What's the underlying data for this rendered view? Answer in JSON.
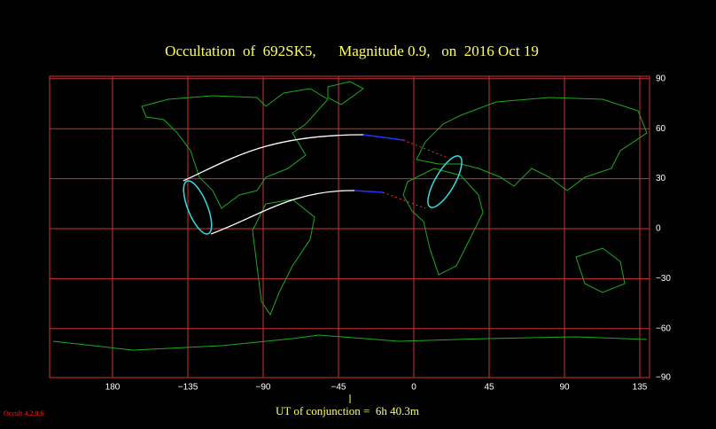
{
  "map": {
    "title": "Occultation  of  692SK5,      Magnitude 0.9,   on  2016 Oct 19",
    "xticks": [
      {
        "value": 180,
        "label": "180"
      },
      {
        "value": -135,
        "label": "−135"
      },
      {
        "value": -90,
        "label": "−90"
      },
      {
        "value": -45,
        "label": "−45"
      },
      0,
      45,
      90,
      135
    ],
    "yticks": [
      90,
      60,
      30,
      0,
      {
        "value": -30,
        "label": "−30"
      },
      {
        "value": -60,
        "label": "−60"
      },
      {
        "value": -90,
        "label": "−90"
      }
    ],
    "conjunction": "UT of conjunction =  6h 40.3m",
    "version": "Occult 4.2.0.6"
  }
}
